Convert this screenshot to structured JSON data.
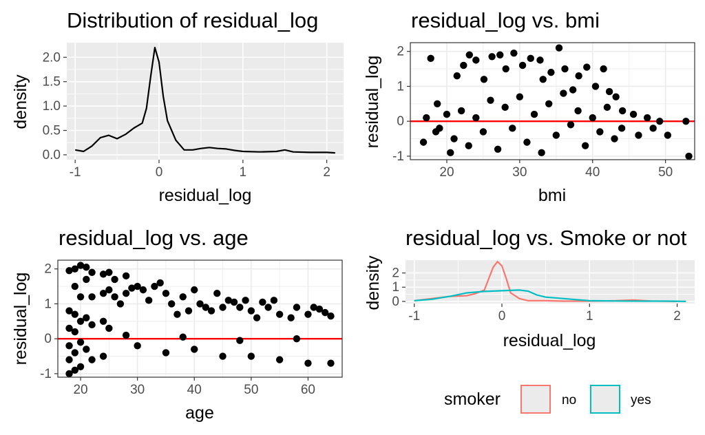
{
  "colors": {
    "panel_gray": "#ebebeb",
    "grid_white": "#ffffff",
    "grid_light": "#ebebeb",
    "point": "#000000",
    "ref_line": "#ff0000",
    "smoker_no": "#f8766d",
    "smoker_yes": "#00bfc4"
  },
  "chart_data": [
    {
      "type": "line",
      "title": "Distribution of residual_log",
      "xlabel": "residual_log",
      "ylabel": "density",
      "xlim": [
        -1.1,
        2.2
      ],
      "ylim": [
        -0.1,
        2.3
      ],
      "xticks": [
        -1,
        0,
        1,
        2
      ],
      "yticks": [
        0.0,
        0.5,
        1.0,
        1.5,
        2.0
      ],
      "xtick_labels": [
        "-1",
        "0",
        "1",
        "2"
      ],
      "ytick_labels": [
        "0.0",
        "0.5",
        "1.0",
        "1.5",
        "2.0"
      ],
      "grid": true,
      "x": [
        -1.0,
        -0.9,
        -0.8,
        -0.7,
        -0.6,
        -0.5,
        -0.4,
        -0.3,
        -0.2,
        -0.15,
        -0.1,
        -0.05,
        0.0,
        0.05,
        0.1,
        0.2,
        0.3,
        0.4,
        0.5,
        0.6,
        0.7,
        0.8,
        0.9,
        1.0,
        1.2,
        1.4,
        1.5,
        1.6,
        1.8,
        2.0,
        2.1
      ],
      "y": [
        0.1,
        0.07,
        0.18,
        0.35,
        0.4,
        0.33,
        0.42,
        0.55,
        0.65,
        0.95,
        1.6,
        2.2,
        1.9,
        1.2,
        0.7,
        0.3,
        0.1,
        0.1,
        0.13,
        0.15,
        0.13,
        0.12,
        0.09,
        0.07,
        0.06,
        0.07,
        0.1,
        0.06,
        0.05,
        0.05,
        0.04
      ]
    },
    {
      "type": "scatter",
      "title": "residual_log vs. bmi",
      "xlabel": "bmi",
      "ylabel": "residual_log",
      "xlim": [
        15,
        54
      ],
      "ylim": [
        -1.1,
        2.25
      ],
      "xticks": [
        20,
        30,
        40,
        50
      ],
      "yticks": [
        -1,
        0,
        1,
        2
      ],
      "xtick_labels": [
        "20",
        "30",
        "40",
        "50"
      ],
      "ytick_labels": [
        "-1",
        "0",
        "1",
        "2"
      ],
      "hline": 0,
      "grid": true,
      "points": [
        [
          16.8,
          -0.6
        ],
        [
          17.2,
          0.1
        ],
        [
          17.8,
          1.8
        ],
        [
          18.5,
          -0.3
        ],
        [
          18.7,
          0.5
        ],
        [
          20.5,
          -0.9
        ],
        [
          21.4,
          1.3
        ],
        [
          22.3,
          1.6
        ],
        [
          23.1,
          1.9
        ],
        [
          24.0,
          1.75
        ],
        [
          25.1,
          1.2
        ],
        [
          26.2,
          1.85
        ],
        [
          27.3,
          1.9
        ],
        [
          28.1,
          1.5
        ],
        [
          29.2,
          1.95
        ],
        [
          30.4,
          1.6
        ],
        [
          31.5,
          1.8
        ],
        [
          32.8,
          1.75
        ],
        [
          33.2,
          1.2
        ],
        [
          34.3,
          1.4
        ],
        [
          35.4,
          2.1
        ],
        [
          36.2,
          1.5
        ],
        [
          37.3,
          0.9
        ],
        [
          38.1,
          1.3
        ],
        [
          39.2,
          1.55
        ],
        [
          40.4,
          1.0
        ],
        [
          41.5,
          1.5
        ],
        [
          42.3,
          0.85
        ],
        [
          43.2,
          0.7
        ],
        [
          44.1,
          0.3
        ],
        [
          45.6,
          0.2
        ],
        [
          46.3,
          -0.4
        ],
        [
          47.5,
          0.1
        ],
        [
          48.3,
          -0.2
        ],
        [
          49.2,
          0.0
        ],
        [
          50.3,
          -0.4
        ],
        [
          52.8,
          0.0
        ],
        [
          53.2,
          -1.0
        ],
        [
          19.0,
          -0.2
        ],
        [
          20.0,
          0.2
        ],
        [
          21.0,
          -0.5
        ],
        [
          22.0,
          0.3
        ],
        [
          23.0,
          -0.7
        ],
        [
          24.0,
          0.1
        ],
        [
          25.0,
          -0.3
        ],
        [
          26.0,
          0.6
        ],
        [
          27.0,
          -0.8
        ],
        [
          28.0,
          0.4
        ],
        [
          29.0,
          -0.2
        ],
        [
          30.0,
          0.7
        ],
        [
          31.0,
          -0.6
        ],
        [
          32.0,
          0.2
        ],
        [
          33.0,
          -0.9
        ],
        [
          34.0,
          0.5
        ],
        [
          35.0,
          -0.4
        ],
        [
          36.0,
          0.8
        ],
        [
          37.0,
          -0.1
        ],
        [
          38.0,
          0.3
        ],
        [
          39.0,
          -0.7
        ],
        [
          40.0,
          0.1
        ],
        [
          41.0,
          -0.3
        ],
        [
          42.0,
          0.4
        ],
        [
          43.0,
          -0.5
        ],
        [
          44.0,
          -0.2
        ]
      ]
    },
    {
      "type": "scatter",
      "title": "residual_log vs. age",
      "xlabel": "age",
      "ylabel": "residual_log",
      "xlim": [
        16,
        66
      ],
      "ylim": [
        -1.1,
        2.25
      ],
      "xticks": [
        20,
        30,
        40,
        50,
        60
      ],
      "yticks": [
        -1,
        0,
        1,
        2
      ],
      "xtick_labels": [
        "20",
        "30",
        "40",
        "50",
        "60"
      ],
      "ytick_labels": [
        "-1",
        "0",
        "1",
        "2"
      ],
      "hline": 0,
      "grid": true,
      "points": [
        [
          18,
          1.95
        ],
        [
          18,
          0.8
        ],
        [
          18,
          0.3
        ],
        [
          18,
          -0.2
        ],
        [
          18,
          -0.6
        ],
        [
          18,
          -1.0
        ],
        [
          19,
          2.0
        ],
        [
          19,
          1.5
        ],
        [
          19,
          0.7
        ],
        [
          19,
          0.2
        ],
        [
          19,
          -0.4
        ],
        [
          19,
          -0.9
        ],
        [
          20,
          2.1
        ],
        [
          20,
          1.2
        ],
        [
          20,
          0.5
        ],
        [
          20,
          -0.1
        ],
        [
          20,
          -0.8
        ],
        [
          21,
          2.05
        ],
        [
          21,
          1.7
        ],
        [
          21,
          0.6
        ],
        [
          21,
          -0.3
        ],
        [
          22,
          1.9
        ],
        [
          22,
          1.2
        ],
        [
          22,
          0.4
        ],
        [
          22,
          -0.6
        ],
        [
          24,
          1.85
        ],
        [
          24,
          1.3
        ],
        [
          24,
          0.5
        ],
        [
          24,
          -0.5
        ],
        [
          25,
          1.9
        ],
        [
          25,
          1.4
        ],
        [
          25,
          0.3
        ],
        [
          26,
          1.7
        ],
        [
          26,
          1.2
        ],
        [
          27,
          1.0
        ],
        [
          28,
          1.8
        ],
        [
          28,
          1.3
        ],
        [
          29,
          1.45
        ],
        [
          30,
          1.5
        ],
        [
          31,
          1.4
        ],
        [
          32,
          1.1
        ],
        [
          33,
          1.5
        ],
        [
          34,
          1.6
        ],
        [
          35,
          1.3
        ],
        [
          36,
          1.0
        ],
        [
          37,
          0.7
        ],
        [
          38,
          1.2
        ],
        [
          39,
          0.8
        ],
        [
          40,
          1.4
        ],
        [
          41,
          1.0
        ],
        [
          42,
          0.9
        ],
        [
          43,
          0.8
        ],
        [
          44,
          1.3
        ],
        [
          45,
          0.9
        ],
        [
          46,
          1.1
        ],
        [
          47,
          1.05
        ],
        [
          48,
          0.9
        ],
        [
          49,
          1.1
        ],
        [
          50,
          0.8
        ],
        [
          51,
          0.6
        ],
        [
          52,
          1.05
        ],
        [
          53,
          0.9
        ],
        [
          54,
          1.1
        ],
        [
          55,
          0.7
        ],
        [
          57,
          0.6
        ],
        [
          58,
          0.9
        ],
        [
          60,
          0.7
        ],
        [
          61,
          0.9
        ],
        [
          62,
          0.85
        ],
        [
          63,
          0.75
        ],
        [
          64,
          0.65
        ],
        [
          30,
          -0.2
        ],
        [
          35,
          -0.4
        ],
        [
          40,
          -0.3
        ],
        [
          45,
          -0.5
        ],
        [
          50,
          -0.5
        ],
        [
          55,
          -0.6
        ],
        [
          60,
          -0.7
        ],
        [
          64,
          -0.7
        ],
        [
          28,
          0.1
        ],
        [
          38,
          0.05
        ],
        [
          48,
          -0.05
        ],
        [
          58,
          0.0
        ]
      ]
    },
    {
      "type": "line",
      "title": "residual_log vs. Smoke or not",
      "xlabel": "residual_log",
      "ylabel": "density",
      "xlim": [
        -1.1,
        2.2
      ],
      "ylim": [
        -0.15,
        2.9
      ],
      "xticks": [
        -1,
        0,
        1,
        2
      ],
      "yticks": [
        0,
        1,
        2
      ],
      "xtick_labels": [
        "-1",
        "0",
        "1",
        "2"
      ],
      "ytick_labels": [
        "0",
        "1",
        "2"
      ],
      "grid": true,
      "legend": {
        "title": "smoker",
        "placement": "bottom",
        "entries": [
          "no",
          "yes"
        ]
      },
      "series": [
        {
          "name": "no",
          "x": [
            -1.0,
            -0.8,
            -0.6,
            -0.4,
            -0.3,
            -0.2,
            -0.15,
            -0.1,
            -0.05,
            0.0,
            0.05,
            0.1,
            0.2,
            0.3,
            0.5,
            0.7,
            1.0,
            1.3,
            1.5,
            1.7,
            2.0
          ],
          "y": [
            0.05,
            0.2,
            0.35,
            0.4,
            0.55,
            0.8,
            1.6,
            2.4,
            2.8,
            2.5,
            1.6,
            0.6,
            0.2,
            0.05,
            0.05,
            0.02,
            0.02,
            0.05,
            0.1,
            0.03,
            0.0
          ]
        },
        {
          "name": "yes",
          "x": [
            -1.0,
            -0.8,
            -0.6,
            -0.4,
            -0.2,
            0.0,
            0.2,
            0.3,
            0.4,
            0.5,
            0.6,
            0.8,
            1.0,
            1.3,
            1.6,
            1.9,
            2.1
          ],
          "y": [
            0.05,
            0.15,
            0.35,
            0.6,
            0.7,
            0.75,
            0.8,
            0.72,
            0.45,
            0.3,
            0.25,
            0.15,
            0.05,
            0.03,
            0.02,
            0.02,
            0.0
          ]
        }
      ]
    }
  ]
}
